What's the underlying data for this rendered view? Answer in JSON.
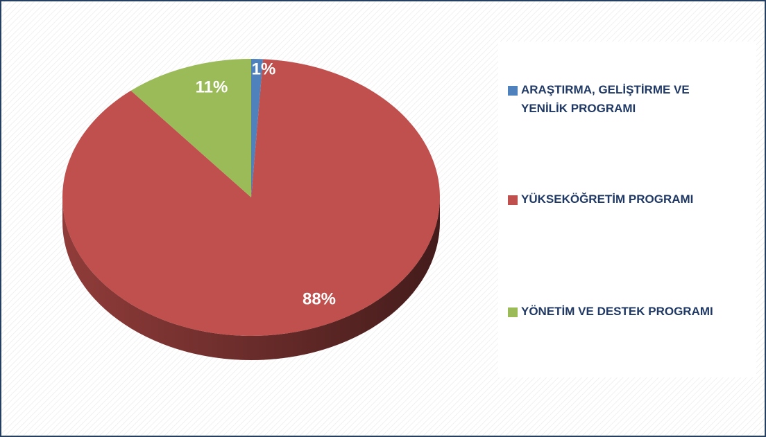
{
  "chart_data": {
    "type": "pie",
    "categories": [
      "ARAŞTIRMA, GELİŞTİRME VE YENİLİK PROGRAMI",
      "YÜKSEKÖĞRETİM PROGRAMI",
      "YÖNETİM VE DESTEK PROGRAMI"
    ],
    "values": [
      1,
      88,
      11
    ],
    "value_labels": [
      "1%",
      "88%",
      "11%"
    ],
    "colors": [
      "#4f81bd",
      "#c0504d",
      "#9bbb59"
    ],
    "legend": "right"
  }
}
